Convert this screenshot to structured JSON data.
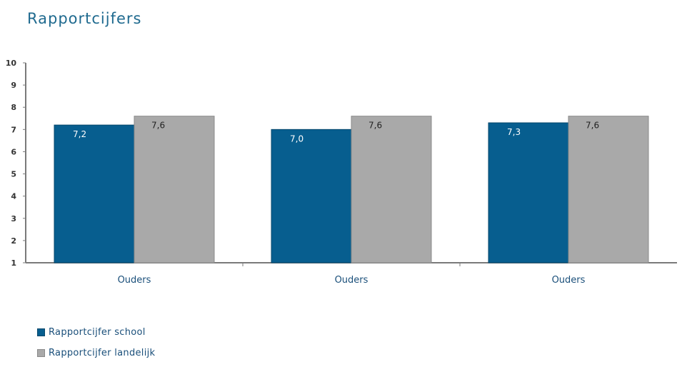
{
  "title": "Rapportcijfers",
  "colors": {
    "school": "#075e8f",
    "landelijk": "#a9a9a9",
    "title": "#1f6a8f",
    "axis_text": "#1a4f7a"
  },
  "legend": [
    {
      "label": "Rapportcijfer school",
      "color": "#075e8f"
    },
    {
      "label": "Rapportcijfer landelijk",
      "color": "#a9a9a9"
    }
  ],
  "chart_data": {
    "type": "bar",
    "title": "Rapportcijfers",
    "categories": [
      "Ouders",
      "Ouders",
      "Ouders"
    ],
    "series": [
      {
        "name": "Rapportcijfer school",
        "values": [
          7.2,
          7.0,
          7.3
        ],
        "labels": [
          "7,2",
          "7,0",
          "7,3"
        ]
      },
      {
        "name": "Rapportcijfer landelijk",
        "values": [
          7.6,
          7.6,
          7.6
        ],
        "labels": [
          "7,6",
          "7,6",
          "7,6"
        ]
      }
    ],
    "ylim": [
      1,
      10
    ],
    "yticks": [
      "1",
      "2",
      "3",
      "4",
      "5",
      "6",
      "7",
      "8",
      "9",
      "10"
    ],
    "xlabel": "",
    "ylabel": "",
    "grid": false,
    "legend_position": "bottom-left"
  }
}
